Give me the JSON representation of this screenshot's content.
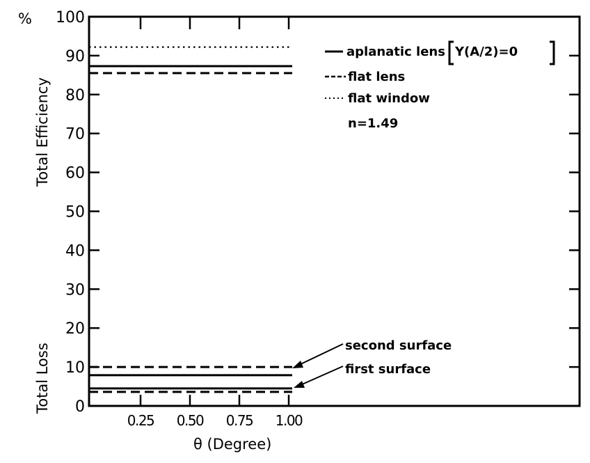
{
  "chart_data": {
    "type": "line",
    "title": "",
    "xlabel": "θ (Degree)",
    "ylabel_top": "Total Efficiency",
    "ylabel_bottom": "Total Loss",
    "y_unit_label": "%",
    "xlim": [
      0,
      1.0
    ],
    "ylim": [
      0,
      100
    ],
    "x_ticks": [
      0.25,
      0.5,
      0.75,
      1.0
    ],
    "x_tick_labels": [
      "0.25",
      "0.50",
      "0.75",
      "1.00"
    ],
    "y_ticks": [
      0,
      10,
      20,
      30,
      40,
      50,
      60,
      70,
      80,
      90,
      100
    ],
    "y_tick_labels": [
      "0",
      "10",
      "20",
      "30",
      "40",
      "50",
      "60",
      "70",
      "80",
      "90",
      "100"
    ],
    "grid": false,
    "legend_position": "upper right",
    "legend": [
      {
        "style": "solid",
        "label": "aplanatic lens",
        "note": "[Y(A/2)=0]"
      },
      {
        "style": "dashed",
        "label": "flat lens"
      },
      {
        "style": "dotted",
        "label": "flat window"
      }
    ],
    "legend_extra": "n=1.49",
    "series": [
      {
        "name": "flat window efficiency",
        "group": "Total Efficiency",
        "style": "dotted",
        "x": [
          0,
          1.0
        ],
        "values": [
          92.2,
          92.2
        ]
      },
      {
        "name": "aplanatic lens efficiency",
        "group": "Total Efficiency",
        "style": "solid",
        "x": [
          0,
          1.0
        ],
        "values": [
          87.3,
          87.3
        ]
      },
      {
        "name": "flat lens efficiency",
        "group": "Total Efficiency",
        "style": "dashed",
        "x": [
          0,
          1.0
        ],
        "values": [
          85.5,
          85.5
        ]
      },
      {
        "name": "flat lens loss (second surface)",
        "group": "Total Loss",
        "style": "dashed",
        "x": [
          0,
          1.0
        ],
        "values": [
          10.0,
          10.0
        ]
      },
      {
        "name": "aplanatic lens loss (second surface)",
        "group": "Total Loss",
        "style": "solid",
        "x": [
          0,
          1.0
        ],
        "values": [
          7.9,
          7.9
        ]
      },
      {
        "name": "aplanatic lens loss (first surface)",
        "group": "Total Loss",
        "style": "solid",
        "x": [
          0,
          1.0
        ],
        "values": [
          4.5,
          4.5
        ]
      },
      {
        "name": "flat lens loss (first surface)",
        "group": "Total Loss",
        "style": "dashed",
        "x": [
          0,
          1.0
        ],
        "values": [
          3.6,
          3.6
        ]
      }
    ],
    "annotations": [
      {
        "text": "second surface",
        "points_to_value": 10.0,
        "at_x": 1.0
      },
      {
        "text": "first surface",
        "points_to_value": 4.5,
        "at_x": 1.0
      }
    ]
  },
  "labels": {
    "percent": "%",
    "ylabel_top": "Total Efficiency",
    "ylabel_bottom": "Total Loss",
    "xlabel": "θ (Degree)",
    "legend_solid": "aplanatic lens",
    "legend_solid_note": "Y(A/2)=0",
    "legend_dashed": "flat lens",
    "legend_dotted": "flat window",
    "legend_n": "n=1.49",
    "annot_second": "second surface",
    "annot_first": "first surface"
  }
}
